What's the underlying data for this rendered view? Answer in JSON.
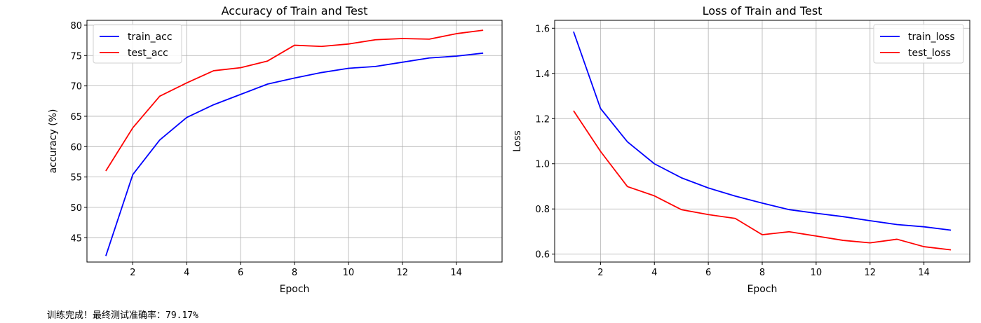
{
  "output_text": "训练完成！最终测试准确率：79.17%",
  "chart_data": [
    {
      "type": "line",
      "title": "Accuracy of Train and Test",
      "xlabel": "Epoch",
      "ylabel": "accuracy (%)",
      "xlim": [
        0.3,
        15.7
      ],
      "ylim": [
        41.0,
        80.8
      ],
      "xticks": [
        2,
        4,
        6,
        8,
        10,
        12,
        14
      ],
      "yticks": [
        45,
        50,
        55,
        60,
        65,
        70,
        75,
        80
      ],
      "grid": true,
      "legend_position": "top-left",
      "x": [
        1,
        2,
        3,
        4,
        5,
        6,
        7,
        8,
        9,
        10,
        11,
        12,
        13,
        14,
        15
      ],
      "series": [
        {
          "name": "train_acc",
          "color": "#0000ff",
          "values": [
            42.0,
            55.4,
            61.1,
            64.8,
            66.9,
            68.6,
            70.3,
            71.3,
            72.2,
            72.9,
            73.2,
            73.9,
            74.6,
            74.9,
            75.4
          ]
        },
        {
          "name": "test_acc",
          "color": "#ff0000",
          "values": [
            56.0,
            63.1,
            68.3,
            70.5,
            72.5,
            73.0,
            74.1,
            76.7,
            76.5,
            76.9,
            77.6,
            77.8,
            77.7,
            78.6,
            79.17
          ]
        }
      ]
    },
    {
      "type": "line",
      "title": "Loss of Train and Test",
      "xlabel": "Epoch",
      "ylabel": "Loss",
      "xlim": [
        0.3,
        15.7
      ],
      "ylim": [
        0.565,
        1.635
      ],
      "xticks": [
        2,
        4,
        6,
        8,
        10,
        12,
        14
      ],
      "yticks": [
        0.6,
        0.8,
        1.0,
        1.2,
        1.4,
        1.6
      ],
      "grid": true,
      "legend_position": "top-right",
      "x": [
        1,
        2,
        3,
        4,
        5,
        6,
        7,
        8,
        9,
        10,
        11,
        12,
        13,
        14,
        15
      ],
      "series": [
        {
          "name": "train_loss",
          "color": "#0000ff",
          "values": [
            1.585,
            1.245,
            1.097,
            1.0,
            0.938,
            0.893,
            0.857,
            0.826,
            0.797,
            0.781,
            0.766,
            0.748,
            0.731,
            0.721,
            0.706
          ]
        },
        {
          "name": "test_loss",
          "color": "#ff0000",
          "values": [
            1.235,
            1.055,
            0.899,
            0.858,
            0.797,
            0.775,
            0.758,
            0.686,
            0.699,
            0.68,
            0.661,
            0.65,
            0.666,
            0.633,
            0.619
          ]
        }
      ]
    }
  ]
}
